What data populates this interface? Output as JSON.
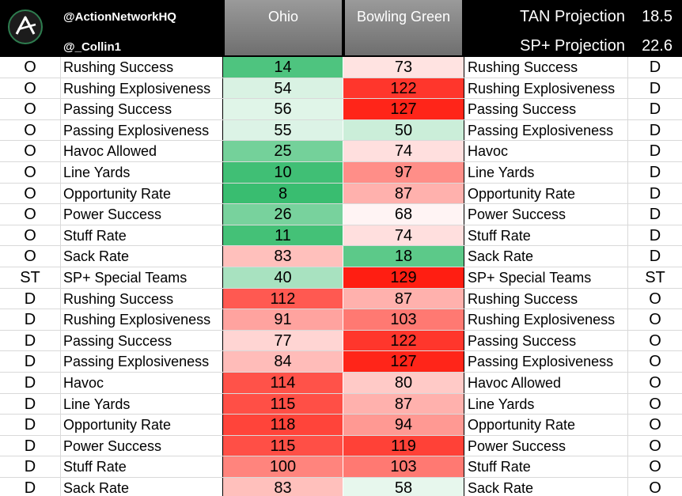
{
  "header": {
    "handle_primary": "@ActionNetworkHQ",
    "handle_secondary": "@_Collin1",
    "team_left": "Ohio",
    "team_right": "Bowling Green",
    "tan_label": "TAN Projection",
    "tan_value": "18.5",
    "sp_label": "SP+ Projection",
    "sp_value": "22.6",
    "logo_icon": "action-network-logo-icon"
  },
  "colors": {
    "rank_best": "#21b55e",
    "rank_mid": "#ffffff",
    "rank_worst": "#ff1a0e"
  },
  "rows": [
    {
      "side": "O",
      "label": "Rushing Success",
      "ohio": "14",
      "bg": "73",
      "label2": "Rushing Success",
      "side2": "D"
    },
    {
      "side": "O",
      "label": "Rushing Explosiveness",
      "ohio": "54",
      "bg": "122",
      "label2": "Rushing Explosiveness",
      "side2": "D"
    },
    {
      "side": "O",
      "label": "Passing Success",
      "ohio": "56",
      "bg": "127",
      "label2": "Passing Success",
      "side2": "D"
    },
    {
      "side": "O",
      "label": "Passing Explosiveness",
      "ohio": "55",
      "bg": "50",
      "label2": "Passing Explosiveness",
      "side2": "D"
    },
    {
      "side": "O",
      "label": "Havoc Allowed",
      "ohio": "25",
      "bg": "74",
      "label2": "Havoc",
      "side2": "D"
    },
    {
      "side": "O",
      "label": "Line Yards",
      "ohio": "10",
      "bg": "97",
      "label2": "Line Yards",
      "side2": "D"
    },
    {
      "side": "O",
      "label": "Opportunity Rate",
      "ohio": "8",
      "bg": "87",
      "label2": "Opportunity Rate",
      "side2": "D"
    },
    {
      "side": "O",
      "label": "Power Success",
      "ohio": "26",
      "bg": "68",
      "label2": "Power Success",
      "side2": "D"
    },
    {
      "side": "O",
      "label": "Stuff Rate",
      "ohio": "11",
      "bg": "74",
      "label2": "Stuff Rate",
      "side2": "D"
    },
    {
      "side": "O",
      "label": "Sack Rate",
      "ohio": "83",
      "bg": "18",
      "label2": "Sack Rate",
      "side2": "D"
    },
    {
      "side": "ST",
      "label": "SP+ Special Teams",
      "ohio": "40",
      "bg": "129",
      "label2": "SP+ Special Teams",
      "side2": "ST"
    },
    {
      "side": "D",
      "label": "Rushing Success",
      "ohio": "112",
      "bg": "87",
      "label2": "Rushing Success",
      "side2": "O"
    },
    {
      "side": "D",
      "label": "Rushing Explosiveness",
      "ohio": "91",
      "bg": "103",
      "label2": "Rushing Explosiveness",
      "side2": "O"
    },
    {
      "side": "D",
      "label": "Passing Success",
      "ohio": "77",
      "bg": "122",
      "label2": "Passing Success",
      "side2": "O"
    },
    {
      "side": "D",
      "label": "Passing Explosiveness",
      "ohio": "84",
      "bg": "127",
      "label2": "Passing Explosiveness",
      "side2": "O"
    },
    {
      "side": "D",
      "label": "Havoc",
      "ohio": "114",
      "bg": "80",
      "label2": "Havoc Allowed",
      "side2": "O"
    },
    {
      "side": "D",
      "label": "Line Yards",
      "ohio": "115",
      "bg": "87",
      "label2": "Line Yards",
      "side2": "O"
    },
    {
      "side": "D",
      "label": "Opportunity Rate",
      "ohio": "118",
      "bg": "94",
      "label2": "Opportunity Rate",
      "side2": "O"
    },
    {
      "side": "D",
      "label": "Power Success",
      "ohio": "115",
      "bg": "119",
      "label2": "Power Success",
      "side2": "O"
    },
    {
      "side": "D",
      "label": "Stuff Rate",
      "ohio": "100",
      "bg": "103",
      "label2": "Stuff Rate",
      "side2": "O"
    },
    {
      "side": "D",
      "label": "Sack Rate",
      "ohio": "83",
      "bg": "58",
      "label2": "Sack Rate",
      "side2": "O"
    }
  ]
}
